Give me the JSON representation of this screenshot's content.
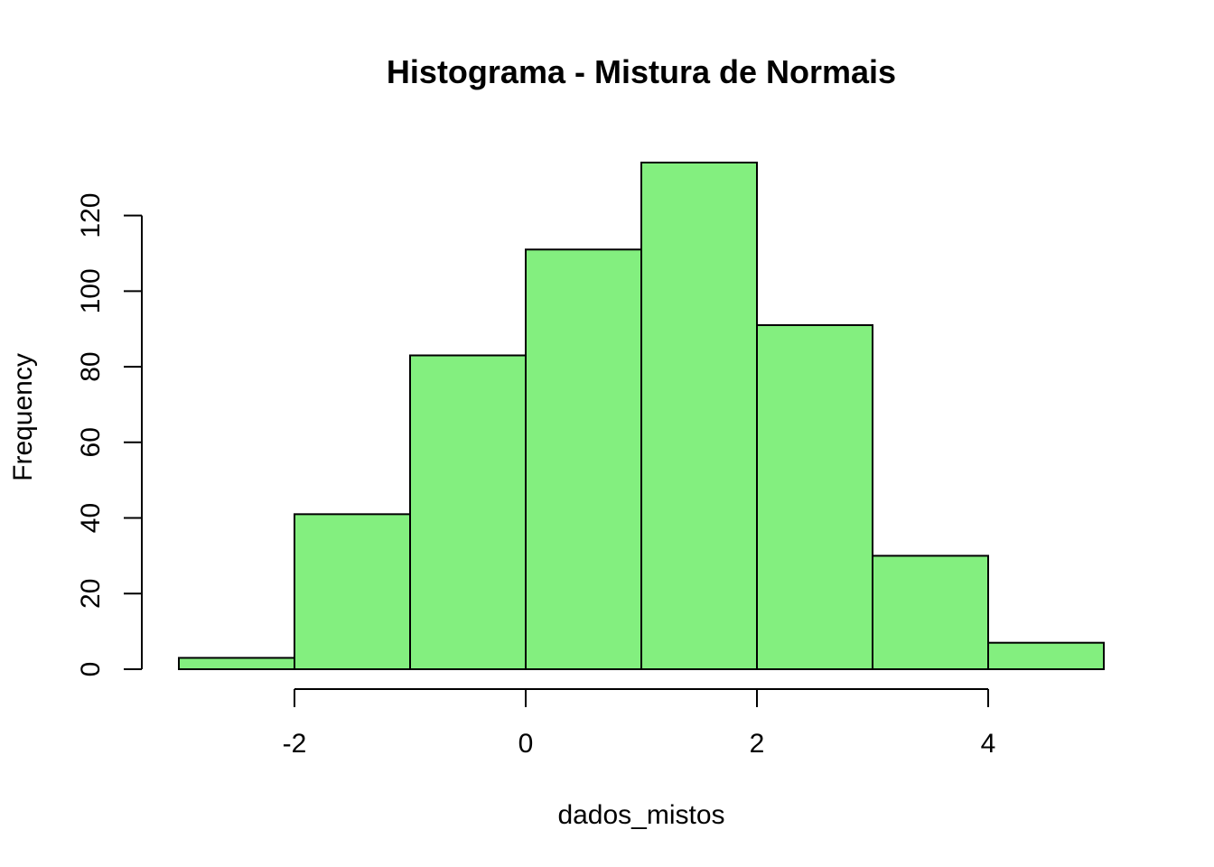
{
  "chart_data": {
    "type": "bar",
    "subtype": "histogram",
    "title": "Histograma - Mistura de Normais",
    "xlabel": "dados_mistos",
    "ylabel": "Frequency",
    "bins": [
      {
        "start": -3,
        "end": -2,
        "count": 3
      },
      {
        "start": -2,
        "end": -1,
        "count": 41
      },
      {
        "start": -1,
        "end": 0,
        "count": 83
      },
      {
        "start": 0,
        "end": 1,
        "count": 111
      },
      {
        "start": 1,
        "end": 2,
        "count": 134
      },
      {
        "start": 2,
        "end": 3,
        "count": 91
      },
      {
        "start": 3,
        "end": 4,
        "count": 30
      },
      {
        "start": 4,
        "end": 5,
        "count": 7
      }
    ],
    "xlim": [
      -3,
      5
    ],
    "ylim": [
      0,
      134
    ],
    "x_ticks": [
      -2,
      0,
      2,
      4
    ],
    "y_ticks": [
      0,
      20,
      40,
      60,
      80,
      100,
      120
    ],
    "bar_color": "#83EF7F",
    "grid": false,
    "legend": "none"
  }
}
